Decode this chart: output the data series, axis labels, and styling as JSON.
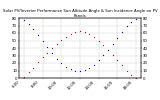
{
  "title": "Solar PV/Inverter Performance Sun Altitude Angle & Sun Incidence Angle on PV Panels",
  "background_color": "#ffffff",
  "grid_color": "#bbbbbb",
  "red_color": "#cc0000",
  "blue_color": "#0000cc",
  "altitude_times": [
    6.0,
    6.5,
    7.0,
    7.5,
    8.0,
    8.5,
    9.0,
    9.5,
    10.0,
    10.5,
    11.0,
    11.5,
    12.0,
    12.5,
    13.0,
    13.5,
    14.0,
    14.5,
    15.0,
    15.5,
    16.0,
    16.5,
    17.0,
    17.5,
    18.0
  ],
  "altitude_values": [
    2,
    8,
    14,
    21,
    28,
    34,
    40,
    46,
    51,
    55,
    59,
    62,
    63,
    62,
    59,
    55,
    50,
    44,
    38,
    31,
    24,
    17,
    10,
    4,
    0
  ],
  "incidence_times": [
    6.0,
    6.5,
    7.0,
    7.5,
    8.0,
    8.5,
    9.0,
    9.5,
    10.0,
    10.5,
    11.0,
    11.5,
    12.0,
    12.5,
    13.0,
    13.5,
    14.0,
    14.5,
    15.0,
    15.5,
    16.0,
    16.5,
    17.0,
    17.5,
    18.0
  ],
  "incidence_values": [
    78,
    72,
    65,
    57,
    49,
    41,
    33,
    26,
    20,
    15,
    12,
    10,
    10,
    11,
    14,
    18,
    24,
    31,
    38,
    46,
    54,
    62,
    69,
    75,
    79
  ],
  "xlim": [
    5.5,
    18.5
  ],
  "ylim": [
    0,
    80
  ],
  "xtick_vals": [
    6,
    8,
    10,
    12,
    14,
    16,
    18
  ],
  "xtick_labels": [
    "6:00\n ",
    "8:00\n ",
    "10:00\n ",
    "12:00\n ",
    "14:00\n ",
    "16:00\n ",
    "18:00\n "
  ],
  "ytick_vals": [
    0,
    10,
    20,
    30,
    40,
    50,
    60,
    70,
    80
  ],
  "tick_fontsize": 2.8,
  "title_fontsize": 2.8,
  "marker_size": 0.8
}
